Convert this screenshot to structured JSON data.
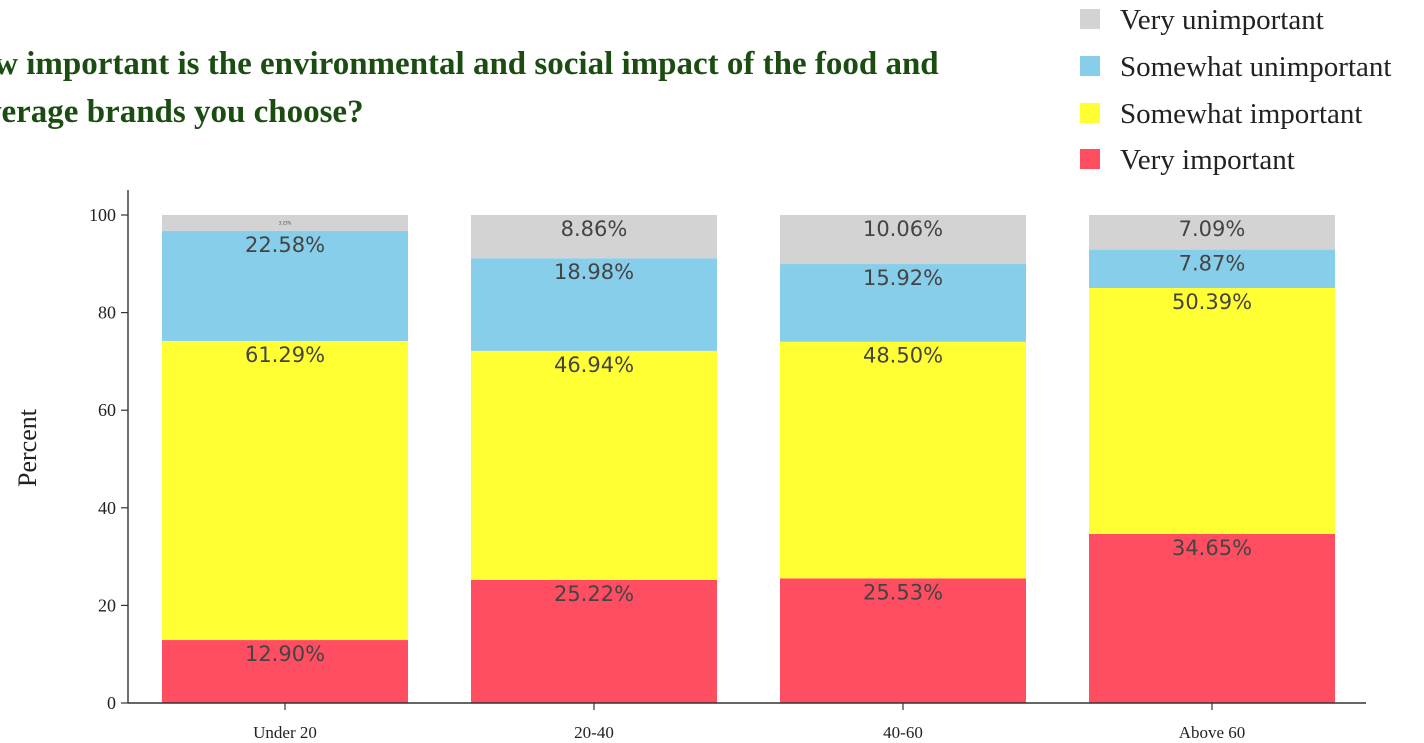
{
  "chart_data": {
    "type": "bar",
    "stacked": true,
    "title_lines": [
      "How important is the environmental and social impact of the food and",
      "beverage brands you choose?"
    ],
    "xlabel": "",
    "ylabel": "Percent",
    "ylim": [
      0,
      100
    ],
    "yticks": [
      0,
      20,
      40,
      60,
      80,
      100
    ],
    "grid": false,
    "legend_position": "top-right",
    "categories": [
      "Under 20",
      "20-40",
      "40-60",
      "Above 60"
    ],
    "series": [
      {
        "name": "Very important",
        "color": "#ff4d61",
        "values": [
          12.9,
          25.22,
          25.53,
          34.65
        ],
        "labels": [
          "12.90%",
          "25.22%",
          "25.53%",
          "34.65%"
        ]
      },
      {
        "name": "Somewhat important",
        "color": "#ffff33",
        "values": [
          61.29,
          46.94,
          48.5,
          50.39
        ],
        "labels": [
          "61.29%",
          "46.94%",
          "48.50%",
          "50.39%"
        ]
      },
      {
        "name": "Somewhat unimportant",
        "color": "#87ceeb",
        "values": [
          22.58,
          18.98,
          15.92,
          7.87
        ],
        "labels": [
          "22.58%",
          "18.98%",
          "15.92%",
          "7.87%"
        ]
      },
      {
        "name": "Very unimportant",
        "color": "#d3d3d3",
        "values": [
          3.23,
          8.86,
          10.06,
          7.09
        ],
        "labels": [
          "3.23%",
          "8.86%",
          "10.06%",
          "7.09%"
        ]
      }
    ],
    "legend_order": [
      "Very unimportant",
      "Somewhat unimportant",
      "Somewhat important",
      "Very important"
    ]
  }
}
